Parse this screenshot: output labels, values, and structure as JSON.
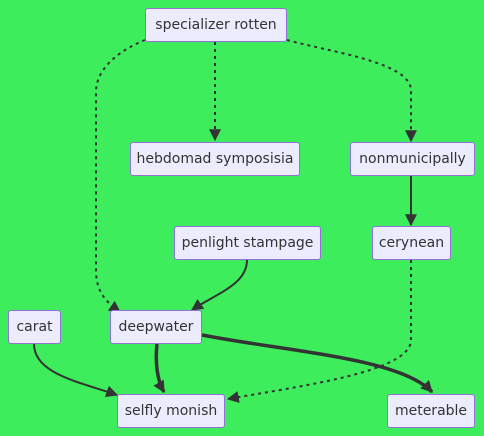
{
  "colors": {
    "background": "#3ded5c",
    "node_fill": "#ececff",
    "node_border": "#9370db",
    "edge": "#333333",
    "text": "#333333"
  },
  "nodes": {
    "specializer_rotten": "specializer rotten",
    "hebdomad_symposisia": "hebdomad symposisia",
    "nonmunicipally": "nonmunicipally",
    "penlight_stampage": "penlight stampage",
    "cerynean": "cerynean",
    "carat": "carat",
    "deepwater": "deepwater",
    "selfly_monish": "selfly monish",
    "meterable": "meterable"
  },
  "edges": [
    {
      "from": "specializer rotten",
      "to": "hebdomad symposisia",
      "style": "dotted"
    },
    {
      "from": "specializer rotten",
      "to": "nonmunicipally",
      "style": "dotted"
    },
    {
      "from": "specializer rotten",
      "to": "deepwater",
      "style": "dotted"
    },
    {
      "from": "nonmunicipally",
      "to": "cerynean",
      "style": "solid"
    },
    {
      "from": "penlight stampage",
      "to": "deepwater",
      "style": "solid"
    },
    {
      "from": "cerynean",
      "to": "selfly monish",
      "style": "dotted"
    },
    {
      "from": "carat",
      "to": "selfly monish",
      "style": "solid"
    },
    {
      "from": "deepwater",
      "to": "selfly monish",
      "style": "thick"
    },
    {
      "from": "deepwater",
      "to": "meterable",
      "style": "thick"
    }
  ]
}
